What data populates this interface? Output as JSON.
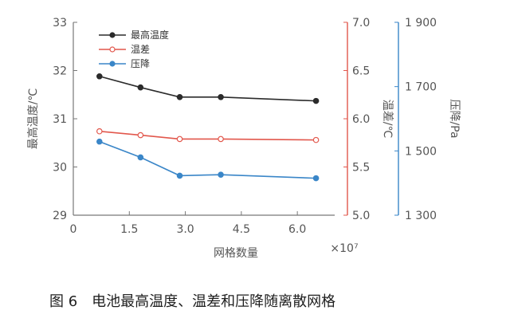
{
  "chart_data": {
    "type": "line",
    "xlabel": "网格数量",
    "x_exponent_label": "×10⁷",
    "x": [
      0.7,
      1.8,
      2.85,
      3.95,
      6.5
    ],
    "xlim": [
      0,
      7.0
    ],
    "x_ticks": [
      0,
      1.5,
      3.0,
      4.5,
      6.0
    ],
    "x_tick_labels": [
      "0",
      "1.5",
      "3.0",
      "4.5",
      "6.0"
    ],
    "left_axis": {
      "label": "最高温度/℃",
      "ylim": [
        29,
        33
      ],
      "ticks": [
        29,
        30,
        31,
        32,
        33
      ],
      "tick_labels": [
        "29",
        "30",
        "31",
        "32",
        "33"
      ]
    },
    "right_axis_1": {
      "label": "温差/℃",
      "ylim": [
        5.0,
        7.0
      ],
      "ticks": [
        5.0,
        5.5,
        6.0,
        6.5,
        7.0
      ],
      "tick_labels": [
        "5.0",
        "5.5",
        "6.0",
        "6.5",
        "7.0"
      ]
    },
    "right_axis_2": {
      "label": "压降/Pa",
      "ylim": [
        1300,
        1900
      ],
      "ticks": [
        1300,
        1500,
        1700,
        1900
      ],
      "tick_labels": [
        "1 300",
        "1 500",
        "1 700",
        "1 900"
      ]
    },
    "series": [
      {
        "name": "最高温度",
        "axis": "left_axis",
        "values": [
          31.88,
          31.65,
          31.45,
          31.45,
          31.37
        ]
      },
      {
        "name": "温差",
        "axis": "right_axis_1",
        "values": [
          5.87,
          5.83,
          5.79,
          5.79,
          5.78
        ]
      },
      {
        "name": "压降",
        "axis": "right_axis_2",
        "values": [
          1529,
          1480,
          1423,
          1426,
          1415
        ]
      }
    ],
    "legend_position": "top-left",
    "grid": false,
    "caption": "图 6　电池最高温度、温差和压降随离散网格"
  },
  "colors": {
    "series": [
      "#2b2b2b",
      "#e2574c",
      "#3a86c8"
    ],
    "left_axis": "#555555",
    "right_axis_1": "#e2574c",
    "right_axis_2": "#3a86c8"
  }
}
